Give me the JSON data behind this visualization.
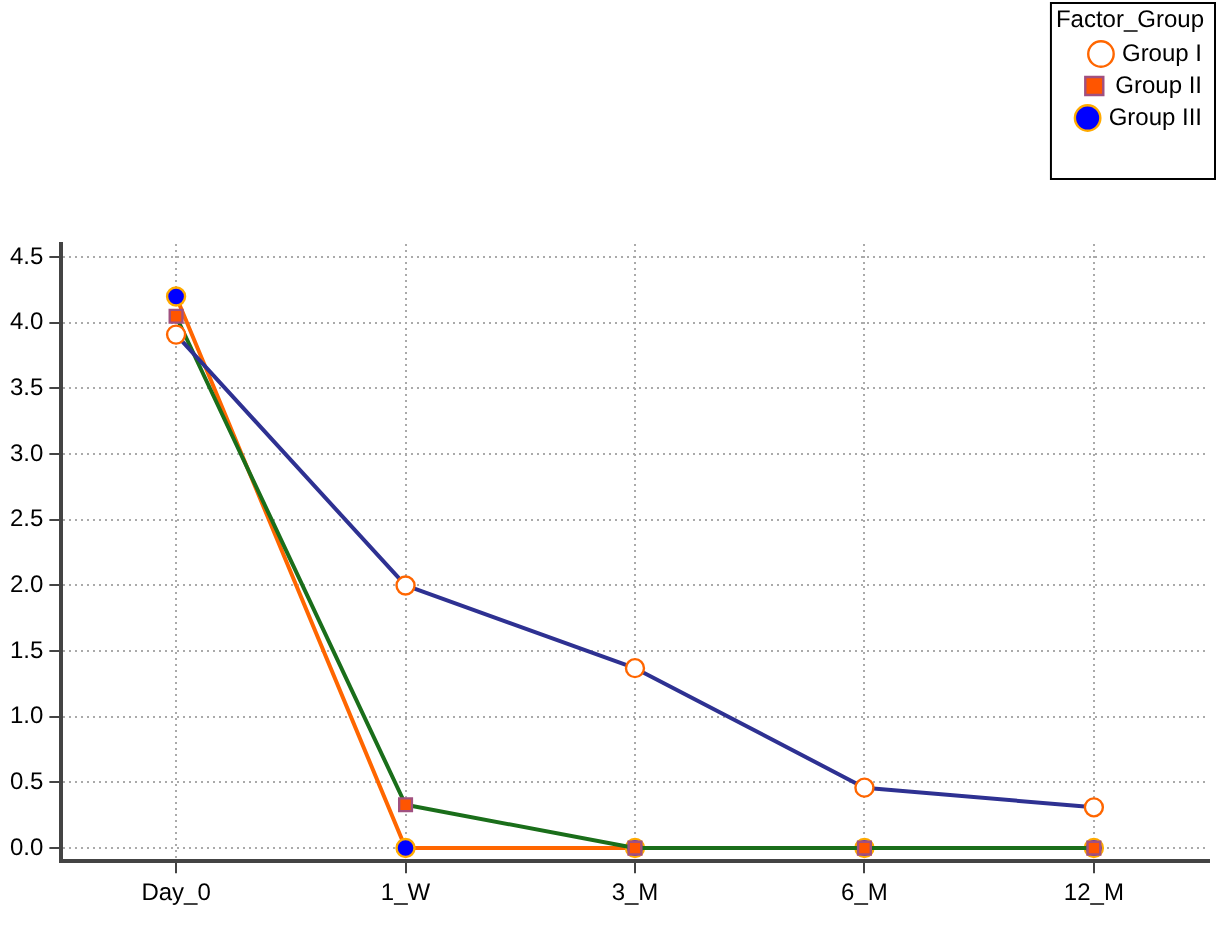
{
  "chart_data": {
    "type": "line",
    "legend_title": "Factor_Group",
    "legend": "top right",
    "grid": true,
    "categories": [
      "Day_0",
      "1_W",
      "3_M",
      "6_M",
      "12_M"
    ],
    "ylim": [
      -0.1,
      4.6
    ],
    "yticks": [
      {
        "value": 0,
        "label": "0.0"
      },
      {
        "value": 0.5,
        "label": "0.5"
      },
      {
        "value": 1,
        "label": "1.0"
      },
      {
        "value": 1.5,
        "label": "1.5"
      },
      {
        "value": 2,
        "label": "2.0"
      },
      {
        "value": 2.5,
        "label": "2.5"
      },
      {
        "value": 3,
        "label": "3.0"
      },
      {
        "value": 3.5,
        "label": "3.5"
      },
      {
        "value": 4,
        "label": "4.0"
      },
      {
        "value": 4.5,
        "label": "4.5"
      }
    ],
    "series": [
      {
        "name": "Group I",
        "color": "#2e3192",
        "marker": "circle",
        "values": [
          3.91,
          2.0,
          1.37,
          0.46,
          0.31
        ]
      },
      {
        "name": "Group II",
        "color": "#1a6e1a",
        "marker": "square",
        "values": [
          4.05,
          0.33,
          0,
          0,
          0
        ]
      },
      {
        "name": "Group III",
        "color": "#ff6600",
        "marker": "circle",
        "values": [
          4.2,
          0,
          0,
          0,
          0
        ]
      }
    ]
  }
}
